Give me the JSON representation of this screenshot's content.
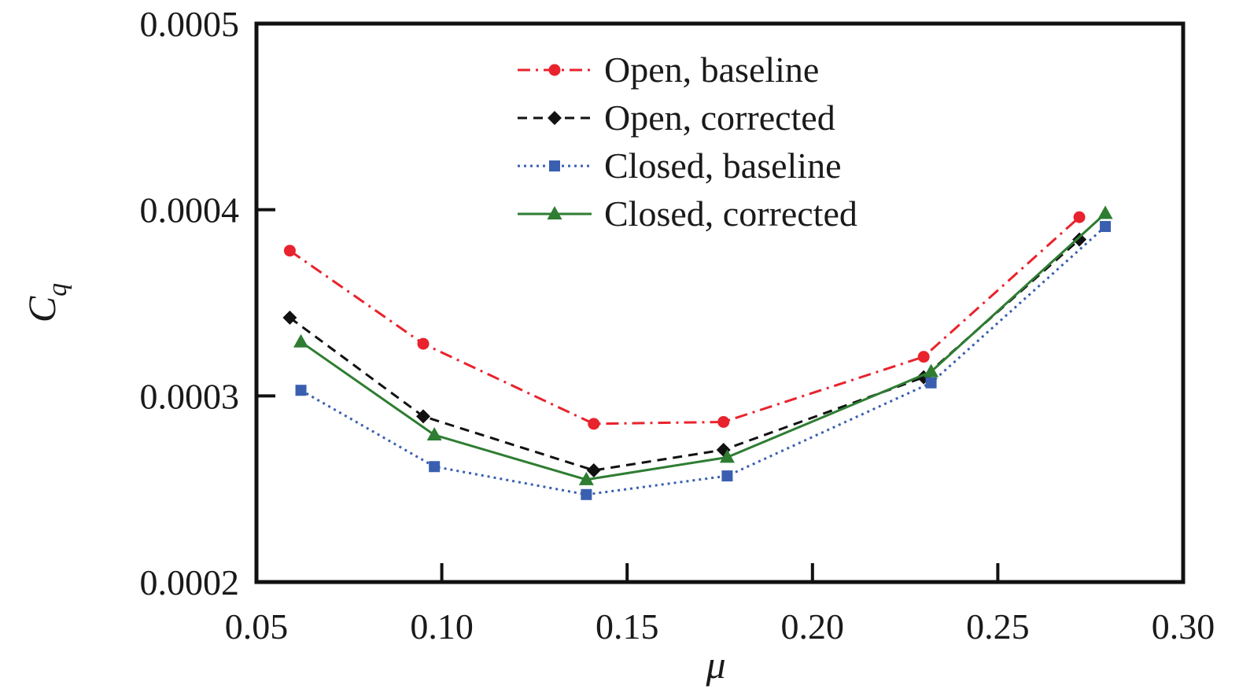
{
  "chart_data": {
    "type": "line",
    "title": "",
    "xlabel": "μ",
    "ylabel_main": "C",
    "ylabel_sub": "q",
    "xlim": [
      0.05,
      0.3
    ],
    "ylim": [
      0.0002,
      0.0005
    ],
    "xticks": [
      0.05,
      0.1,
      0.15,
      0.2,
      0.25,
      0.3
    ],
    "xtick_labels": [
      "0.05",
      "0.10",
      "0.15",
      "0.20",
      "0.25",
      "0.30"
    ],
    "yticks": [
      0.0002,
      0.0003,
      0.0004,
      0.0005
    ],
    "ytick_labels": [
      "0.0002",
      "0.0003",
      "0.0004",
      "0.0005"
    ],
    "grid": false,
    "legend_position": "top-center",
    "series": [
      {
        "name": "Open, baseline",
        "color": "#e8232d",
        "line_style": "dash-dot",
        "marker": "circle",
        "x": [
          0.059,
          0.095,
          0.141,
          0.176,
          0.23,
          0.272
        ],
        "y": [
          0.000378,
          0.000328,
          0.000285,
          0.000286,
          0.000321,
          0.000396
        ]
      },
      {
        "name": "Open, corrected",
        "color": "#111111",
        "line_style": "dashed",
        "marker": "diamond",
        "x": [
          0.059,
          0.095,
          0.141,
          0.176,
          0.23,
          0.272
        ],
        "y": [
          0.000342,
          0.000289,
          0.00026,
          0.000271,
          0.00031,
          0.000384
        ]
      },
      {
        "name": "Closed, baseline",
        "color": "#3a5fb0",
        "line_style": "dotted",
        "marker": "square",
        "x": [
          0.062,
          0.098,
          0.139,
          0.177,
          0.232,
          0.279
        ],
        "y": [
          0.000303,
          0.000262,
          0.000247,
          0.000257,
          0.000307,
          0.000391
        ]
      },
      {
        "name": "Closed, corrected",
        "color": "#2e7d32",
        "line_style": "solid",
        "marker": "triangle",
        "x": [
          0.062,
          0.098,
          0.139,
          0.177,
          0.232,
          0.279
        ],
        "y": [
          0.000329,
          0.000279,
          0.000255,
          0.000267,
          0.000313,
          0.000398
        ]
      }
    ]
  }
}
